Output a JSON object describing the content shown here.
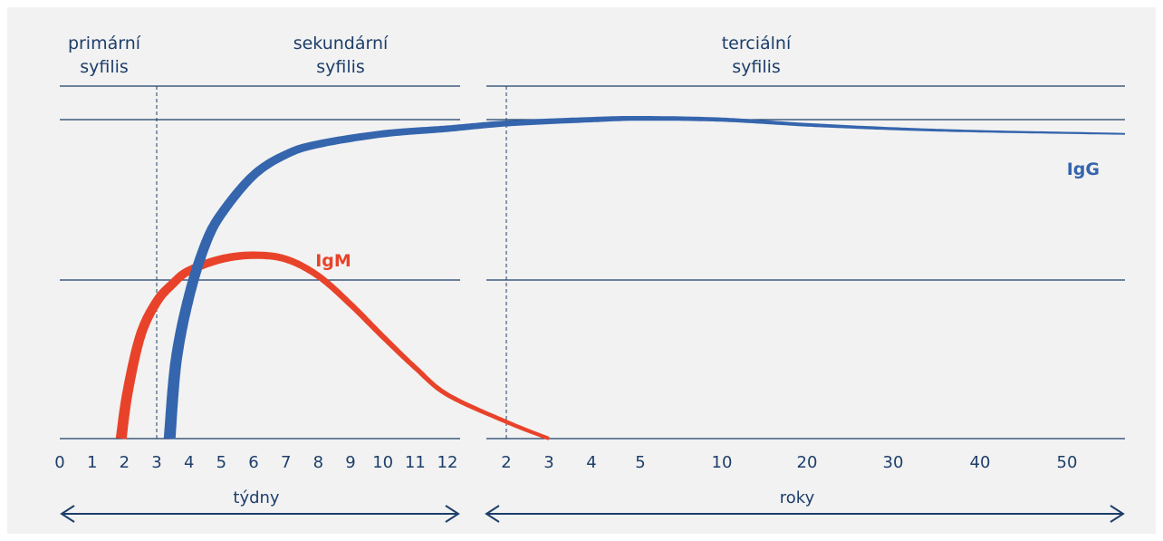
{
  "chart_data": {
    "type": "line",
    "title": "",
    "ylabel": "",
    "phases": [
      {
        "lines": [
          "primární",
          "syfilis"
        ]
      },
      {
        "lines": [
          "sekundární",
          "syfilis"
        ]
      },
      {
        "lines": [
          "terciální",
          "syfilis"
        ]
      }
    ],
    "axes": [
      {
        "unit_label": "týdny",
        "ticks": [
          "0",
          "1",
          "2",
          "3",
          "4",
          "5",
          "6",
          "7",
          "8",
          "9",
          "10",
          "11",
          "12"
        ],
        "range": [
          0,
          12
        ]
      },
      {
        "unit_label": "roky",
        "ticks": [
          "2",
          "3",
          "4",
          "5",
          "10",
          "20",
          "30",
          "40",
          "50"
        ],
        "range": [
          1.5,
          53
        ]
      }
    ],
    "series": [
      {
        "name": "IgM",
        "color": "#e8432a",
        "points": [
          {
            "axis": 0,
            "x": 1.9,
            "y": 0
          },
          {
            "axis": 0,
            "x": 2.1,
            "y": 0.18
          },
          {
            "axis": 0,
            "x": 2.5,
            "y": 0.4
          },
          {
            "axis": 0,
            "x": 3.0,
            "y": 0.53
          },
          {
            "axis": 0,
            "x": 3.5,
            "y": 0.6
          },
          {
            "axis": 0,
            "x": 4.0,
            "y": 0.65
          },
          {
            "axis": 0,
            "x": 5.0,
            "y": 0.695
          },
          {
            "axis": 0,
            "x": 6.0,
            "y": 0.71
          },
          {
            "axis": 0,
            "x": 7.0,
            "y": 0.695
          },
          {
            "axis": 0,
            "x": 8.0,
            "y": 0.63
          },
          {
            "axis": 0,
            "x": 9.0,
            "y": 0.52
          },
          {
            "axis": 0,
            "x": 10.0,
            "y": 0.395
          },
          {
            "axis": 0,
            "x": 11.0,
            "y": 0.275
          },
          {
            "axis": 0,
            "x": 12.0,
            "y": 0.17
          },
          {
            "axis": 1,
            "x": 2,
            "y": 0.065
          },
          {
            "axis": 1,
            "x": 3,
            "y": 0
          }
        ]
      },
      {
        "name": "IgG",
        "color": "#3565ad",
        "points": [
          {
            "axis": 0,
            "x": 3.4,
            "y": 0
          },
          {
            "axis": 0,
            "x": 3.6,
            "y": 0.3
          },
          {
            "axis": 0,
            "x": 4.0,
            "y": 0.55
          },
          {
            "axis": 0,
            "x": 4.5,
            "y": 0.75
          },
          {
            "axis": 0,
            "x": 5.0,
            "y": 0.87
          },
          {
            "axis": 0,
            "x": 6.0,
            "y": 1.02
          },
          {
            "axis": 0,
            "x": 7.0,
            "y": 1.1
          },
          {
            "axis": 0,
            "x": 8.0,
            "y": 1.14
          },
          {
            "axis": 0,
            "x": 10.0,
            "y": 1.18
          },
          {
            "axis": 0,
            "x": 12.0,
            "y": 1.2
          },
          {
            "axis": 1,
            "x": 2,
            "y": 1.22
          },
          {
            "axis": 1,
            "x": 4,
            "y": 1.235
          },
          {
            "axis": 1,
            "x": 5,
            "y": 1.24
          },
          {
            "axis": 1,
            "x": 10,
            "y": 1.235
          },
          {
            "axis": 1,
            "x": 20,
            "y": 1.215
          },
          {
            "axis": 1,
            "x": 30,
            "y": 1.2
          },
          {
            "axis": 1,
            "x": 40,
            "y": 1.19
          },
          {
            "axis": 1,
            "x": 53,
            "y": 1.18
          }
        ]
      }
    ],
    "phase_boundaries": [
      {
        "axis": 0,
        "x": 3
      },
      {
        "axis": 1,
        "x": 2
      }
    ],
    "ylim": [
      0,
      1.6
    ],
    "grid": true
  }
}
